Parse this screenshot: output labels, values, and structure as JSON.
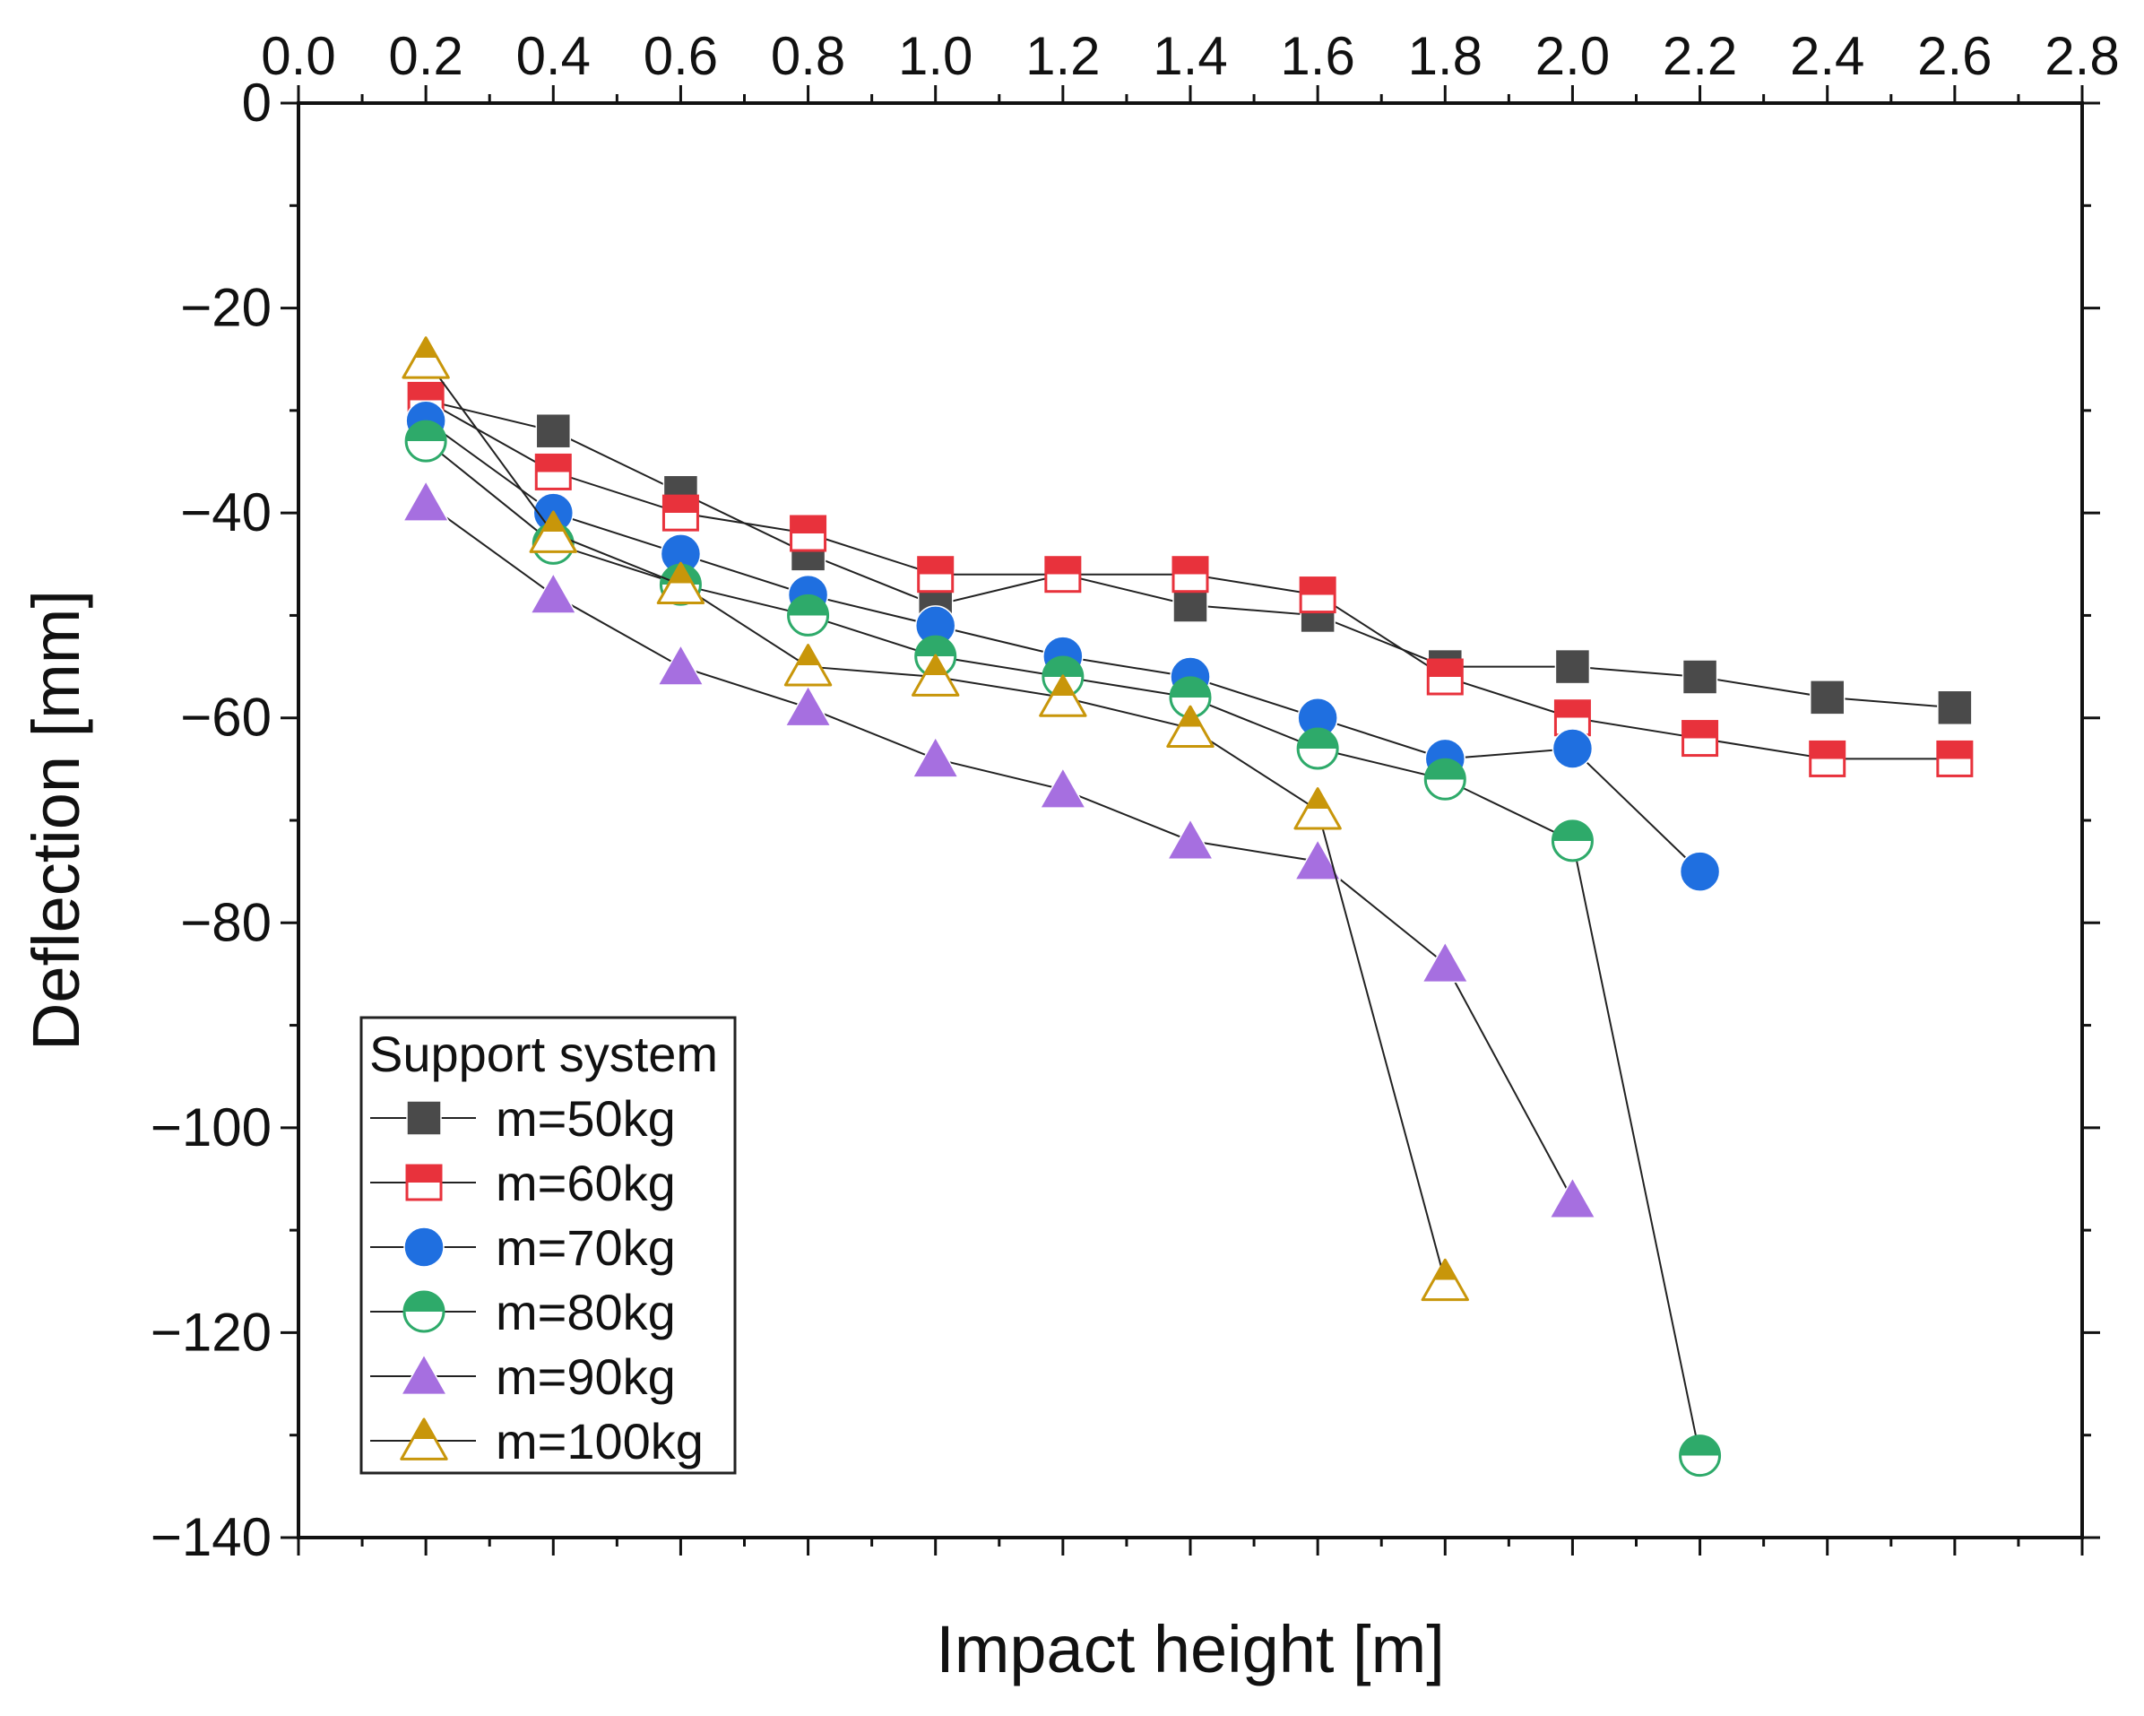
{
  "chart_data": {
    "type": "scatter",
    "xlabel": "Impact height [m]",
    "ylabel": "Deflection [mm]",
    "xlim": [
      0.0,
      2.8
    ],
    "ylim": [
      -140,
      0
    ],
    "xticks": [
      "0.0",
      "0.2",
      "0.4",
      "0.6",
      "0.8",
      "1.0",
      "1.2",
      "1.4",
      "1.6",
      "1.8",
      "2.0",
      "2.2",
      "2.4",
      "2.6",
      "2.8"
    ],
    "yticks": [
      "0",
      "-20",
      "-40",
      "-60",
      "-80",
      "-100",
      "-120",
      "-140"
    ],
    "x_axis_position": "top",
    "grid": false,
    "legend": {
      "title": "Support system",
      "position": "bottom-left"
    },
    "series": [
      {
        "name": "m=50kg",
        "color": "#4a4a4a",
        "marker": "square-filled",
        "x": [
          0.2,
          0.4,
          0.6,
          0.8,
          1.0,
          1.2,
          1.4,
          1.6,
          1.8,
          2.0,
          2.2,
          2.4,
          2.6
        ],
        "y": [
          -29,
          -32,
          -38,
          -44,
          -49,
          -46,
          -49,
          -50,
          -55,
          -55,
          -56,
          -58,
          -59
        ]
      },
      {
        "name": "m=60kg",
        "color": "#e8323c",
        "marker": "square-half",
        "x": [
          0.2,
          0.4,
          0.6,
          0.8,
          1.0,
          1.2,
          1.4,
          1.6,
          1.8,
          2.0,
          2.2,
          2.4,
          2.6
        ],
        "y": [
          -29,
          -36,
          -40,
          -42,
          -46,
          -46,
          -46,
          -48,
          -56,
          -60,
          -62,
          -64,
          -64
        ]
      },
      {
        "name": "m=70kg",
        "color": "#1f6fe0",
        "marker": "circle-filled",
        "x": [
          0.2,
          0.4,
          0.6,
          0.8,
          1.0,
          1.2,
          1.4,
          1.6,
          1.8,
          2.0,
          2.2
        ],
        "y": [
          -31,
          -40,
          -44,
          -48,
          -51,
          -54,
          -56,
          -60,
          -64,
          -63,
          -75
        ]
      },
      {
        "name": "m=80kg",
        "color": "#2eaa6a",
        "marker": "circle-half",
        "x": [
          0.2,
          0.4,
          0.6,
          0.8,
          1.0,
          1.2,
          1.4,
          1.6,
          1.8,
          2.0,
          2.2
        ],
        "y": [
          -33,
          -43,
          -47,
          -50,
          -54,
          -56,
          -58,
          -63,
          -66,
          -72,
          -132
        ]
      },
      {
        "name": "m=90kg",
        "color": "#a66fe0",
        "marker": "triangle-filled",
        "x": [
          0.2,
          0.4,
          0.6,
          0.8,
          1.0,
          1.2,
          1.4,
          1.6,
          1.8,
          2.0
        ],
        "y": [
          -39,
          -48,
          -55,
          -59,
          -64,
          -67,
          -72,
          -74,
          -84,
          -107
        ]
      },
      {
        "name": "m=100kg",
        "color": "#c8960a",
        "marker": "triangle-half",
        "x": [
          0.2,
          0.4,
          0.6,
          0.8,
          1.0,
          1.2,
          1.4,
          1.6,
          1.8
        ],
        "y": [
          -25,
          -42,
          -47,
          -55,
          -56,
          -58,
          -61,
          -69,
          -115
        ]
      }
    ]
  }
}
